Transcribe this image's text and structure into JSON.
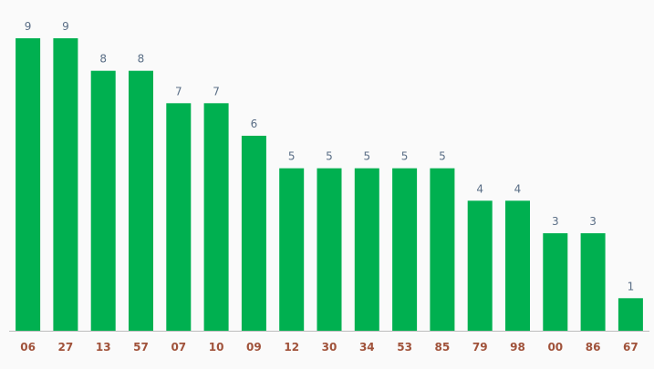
{
  "chart_data": {
    "type": "bar",
    "categories": [
      "06",
      "27",
      "13",
      "57",
      "07",
      "10",
      "09",
      "12",
      "30",
      "34",
      "53",
      "85",
      "79",
      "98",
      "00",
      "86",
      "67"
    ],
    "values": [
      9,
      9,
      8,
      8,
      7,
      7,
      6,
      5,
      5,
      5,
      5,
      5,
      4,
      4,
      3,
      3,
      1
    ],
    "title": "",
    "xlabel": "",
    "ylabel": "",
    "ylim": [
      0,
      9
    ],
    "grid": false,
    "show_value_labels": true
  },
  "colors": {
    "bar": "#00b050",
    "value_label": "#5a6e86",
    "category_label": "#a0523a",
    "axis_line": "#bdbdbd",
    "background": "#fafafa"
  }
}
